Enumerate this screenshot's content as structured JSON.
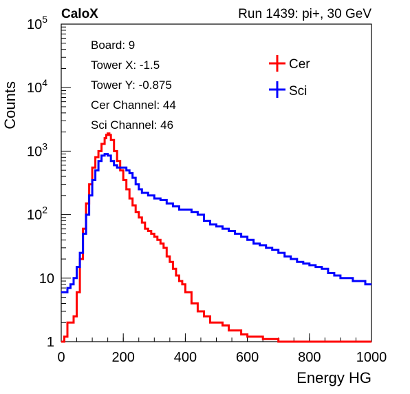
{
  "header": {
    "experiment": "CaloX",
    "run_info": "Run 1439: pi+, 30 GeV"
  },
  "info_box": {
    "lines": [
      "Board: 9",
      "Tower X: -1.5",
      "Tower Y: -0.875",
      "Cer Channel: 44",
      "Sci Channel: 46"
    ]
  },
  "chart_data": {
    "type": "line",
    "title": "",
    "xlabel": "Energy HG",
    "ylabel": "Counts",
    "xlim": [
      0,
      1000
    ],
    "ylim": [
      1,
      100000
    ],
    "y_scale": "log",
    "x_ticks": [
      "0",
      "200",
      "400",
      "600",
      "800",
      "1000"
    ],
    "y_ticks": [
      "1",
      "10",
      "10^2",
      "10^3",
      "10^4",
      "10^5"
    ],
    "legend_position": "top-right",
    "series": [
      {
        "name": "Cer",
        "color": "#ff0000",
        "x": [
          0,
          10,
          20,
          30,
          40,
          50,
          60,
          70,
          80,
          90,
          100,
          110,
          120,
          130,
          140,
          145,
          150,
          155,
          160,
          170,
          180,
          190,
          200,
          210,
          220,
          230,
          240,
          250,
          260,
          270,
          280,
          290,
          300,
          310,
          320,
          330,
          340,
          350,
          360,
          370,
          380,
          390,
          400,
          420,
          440,
          460,
          480,
          500,
          520,
          540,
          560,
          580,
          600,
          650,
          700,
          750,
          800,
          850,
          900,
          950,
          1000
        ],
        "values": [
          1,
          1.2,
          2,
          2,
          2.5,
          6,
          20,
          60,
          150,
          300,
          550,
          800,
          1000,
          1300,
          1600,
          1800,
          1900,
          1800,
          1500,
          1000,
          700,
          500,
          350,
          250,
          180,
          140,
          110,
          90,
          75,
          60,
          55,
          50,
          45,
          40,
          35,
          30,
          22,
          18,
          14,
          11,
          9,
          8,
          6,
          4,
          3,
          2.5,
          2,
          2,
          1.8,
          1.5,
          1.5,
          1.3,
          1.2,
          1.1,
          1,
          1,
          1,
          1,
          1,
          1,
          1
        ]
      },
      {
        "name": "Sci",
        "color": "#0000ff",
        "x": [
          0,
          10,
          20,
          30,
          40,
          50,
          60,
          70,
          80,
          90,
          100,
          110,
          120,
          130,
          140,
          150,
          160,
          170,
          180,
          190,
          200,
          210,
          220,
          230,
          240,
          250,
          260,
          280,
          300,
          320,
          340,
          360,
          380,
          400,
          420,
          440,
          460,
          480,
          500,
          520,
          540,
          560,
          580,
          600,
          620,
          640,
          660,
          680,
          700,
          720,
          740,
          760,
          780,
          800,
          820,
          840,
          860,
          880,
          900,
          920,
          940,
          960,
          980,
          1000
        ],
        "values": [
          6,
          6,
          7,
          8,
          10,
          15,
          25,
          50,
          100,
          200,
          350,
          500,
          700,
          850,
          900,
          850,
          700,
          600,
          550,
          550,
          550,
          500,
          450,
          380,
          300,
          250,
          220,
          200,
          180,
          170,
          150,
          135,
          120,
          120,
          110,
          100,
          80,
          70,
          65,
          60,
          55,
          50,
          45,
          40,
          35,
          33,
          30,
          28,
          25,
          22,
          20,
          18,
          17,
          16,
          15,
          14,
          12,
          11,
          10,
          10,
          9,
          9,
          8,
          8
        ]
      }
    ]
  }
}
